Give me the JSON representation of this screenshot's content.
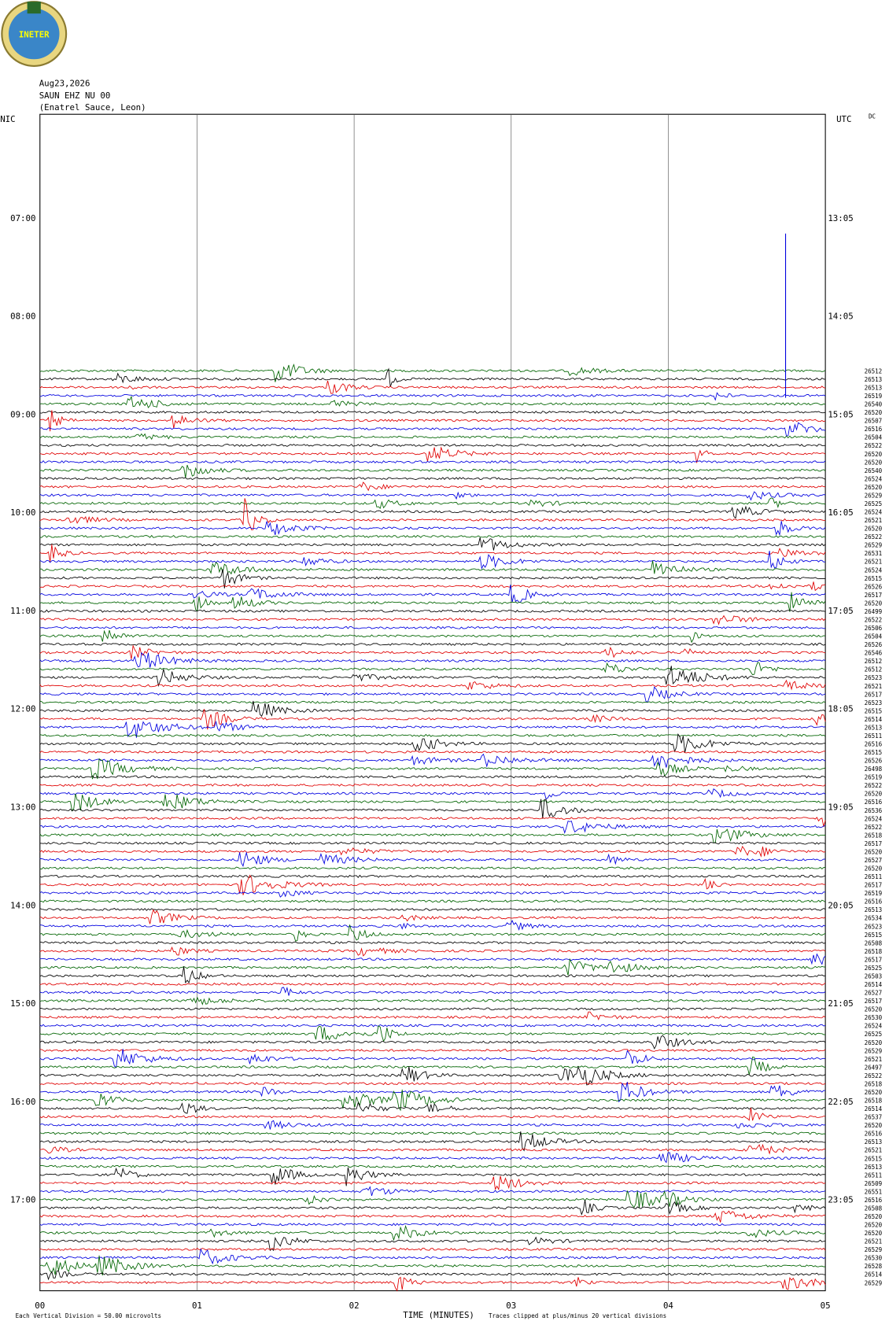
{
  "logo_text": "INETER",
  "header": {
    "date": "Aug23,2026",
    "station": "SAUN EHZ NU 00",
    "location": "(Enatrel Sauce, Leon)"
  },
  "tz_left": "NIC",
  "tz_right": "UTC",
  "dc": "DC",
  "left_times": [
    "07:00",
    "08:00",
    "09:00",
    "10:00",
    "11:00",
    "12:00",
    "13:00",
    "14:00",
    "15:00",
    "16:00",
    "17:00"
  ],
  "right_times": [
    "13:05",
    "14:05",
    "15:05",
    "16:05",
    "17:05",
    "18:05",
    "19:05",
    "20:05",
    "21:05",
    "22:05",
    "23:05"
  ],
  "x_ticks": [
    "00",
    "01",
    "02",
    "03",
    "04",
    "05"
  ],
  "x_title": "TIME (MINUTES)",
  "scale_note": "Each Vertical Division =   50.00 microvolts",
  "clip_note": "Traces clipped at plus/minus 20 vertical divisions",
  "trace_labels": [
    "26512",
    "26513",
    "26513",
    "26519",
    "26540",
    "26520",
    "26507",
    "26516",
    "26504",
    "26522",
    "26520",
    "26520",
    "26540",
    "26524",
    "26520",
    "26529",
    "26525",
    "26524",
    "26521",
    "26520",
    "26522",
    "26529",
    "26531",
    "26521",
    "26524",
    "26515",
    "26526",
    "26517",
    "26520",
    "26499",
    "26522",
    "26506",
    "26504",
    "26526",
    "26546",
    "26512",
    "26512",
    "26523",
    "26521",
    "26517",
    "26523",
    "26515",
    "26514",
    "26513",
    "26511",
    "26516",
    "26515",
    "26526",
    "26498",
    "26519",
    "26522",
    "26520",
    "26516",
    "26536",
    "26524",
    "26522",
    "26518",
    "26517",
    "26520",
    "26527",
    "26520",
    "26511",
    "26517",
    "26519",
    "26516",
    "26513",
    "26534",
    "26523",
    "26515",
    "26508",
    "26518",
    "26517",
    "26525",
    "26503",
    "26514",
    "26527",
    "26517",
    "26520",
    "26530",
    "26524",
    "26525",
    "26520",
    "26529",
    "26521",
    "26497",
    "26522",
    "26518",
    "26520",
    "26518",
    "26514",
    "26537",
    "26520",
    "26516",
    "26513",
    "26521",
    "26515",
    "26513",
    "26511",
    "26509",
    "26551",
    "26516",
    "26508",
    "26520",
    "26520",
    "26520",
    "26521",
    "26529",
    "26530",
    "26528",
    "26514",
    "26529"
  ]
}
